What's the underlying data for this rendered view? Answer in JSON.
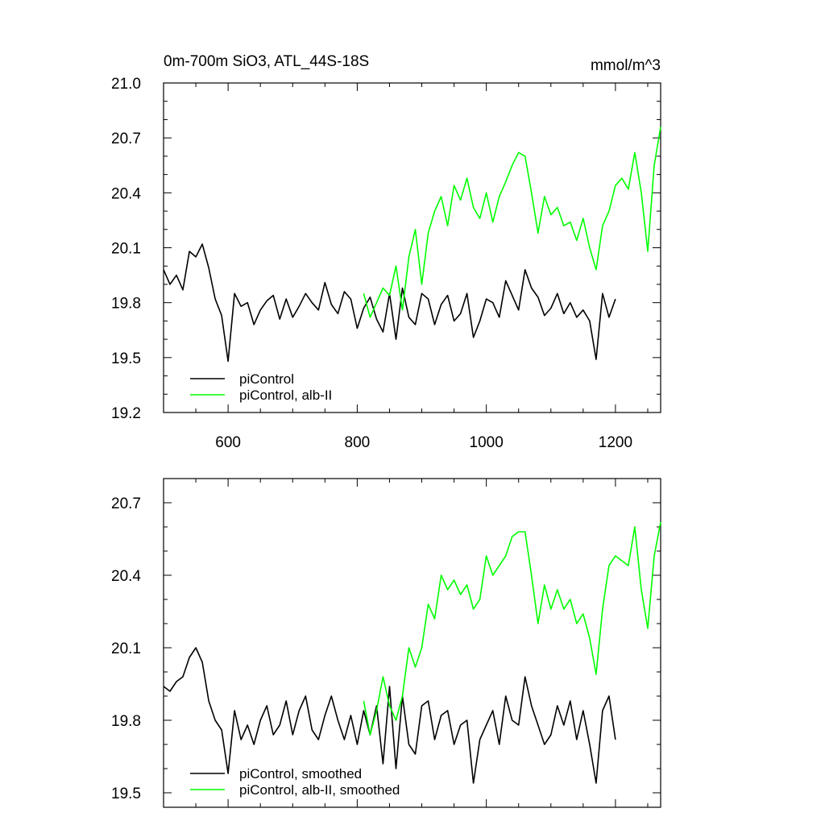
{
  "figure": {
    "title_left": "0m-700m SiO3, ATL_44S-18S",
    "title_right": "mmol/m^3"
  },
  "chart_data": [
    {
      "type": "line",
      "title": "0m-700m SiO3, ATL_44S-18S",
      "unit": "mmol/m^3",
      "xlim": [
        500,
        1270
      ],
      "ylim": [
        19.2,
        21.0
      ],
      "xticks": [
        600,
        800,
        1000,
        1200
      ],
      "xtick_labels": [
        "600",
        "800",
        "1000",
        "1200"
      ],
      "yticks": [
        19.2,
        19.5,
        19.8,
        20.1,
        20.4,
        20.7,
        21.0
      ],
      "ytick_labels": [
        "19.2",
        "19.5",
        "19.8",
        "20.1",
        "20.4",
        "20.7",
        "21.0"
      ],
      "legend": "bottom-left",
      "series": [
        {
          "name": "piControl",
          "color": "#000000",
          "x": [
            500,
            510,
            520,
            530,
            540,
            550,
            560,
            570,
            580,
            590,
            600,
            610,
            620,
            630,
            640,
            650,
            660,
            670,
            680,
            690,
            700,
            710,
            720,
            730,
            740,
            750,
            760,
            770,
            780,
            790,
            800,
            810,
            820,
            830,
            840,
            850,
            860,
            870,
            880,
            890,
            900,
            910,
            920,
            930,
            940,
            950,
            960,
            970,
            980,
            990,
            1000,
            1010,
            1020,
            1030,
            1040,
            1050,
            1060,
            1070,
            1080,
            1090,
            1100,
            1110,
            1120,
            1130,
            1140,
            1150,
            1160,
            1170,
            1180,
            1190,
            1200
          ],
          "values": [
            19.98,
            19.9,
            19.95,
            19.87,
            20.08,
            20.05,
            20.12,
            19.99,
            19.82,
            19.73,
            19.48,
            19.85,
            19.78,
            19.8,
            19.68,
            19.76,
            19.81,
            19.84,
            19.71,
            19.82,
            19.72,
            19.78,
            19.85,
            19.8,
            19.76,
            19.91,
            19.79,
            19.74,
            19.86,
            19.82,
            19.66,
            19.77,
            19.83,
            19.71,
            19.64,
            19.85,
            19.6,
            19.88,
            19.72,
            19.68,
            19.85,
            19.82,
            19.68,
            19.79,
            19.84,
            19.7,
            19.74,
            19.85,
            19.61,
            19.7,
            19.82,
            19.8,
            19.72,
            19.92,
            19.84,
            19.76,
            19.98,
            19.88,
            19.83,
            19.73,
            19.77,
            19.85,
            19.74,
            19.8,
            19.72,
            19.76,
            19.7,
            19.49,
            19.85,
            19.72,
            19.82
          ]
        },
        {
          "name": "piControl, alb-II",
          "color": "#00ff00",
          "x": [
            810,
            820,
            830,
            840,
            850,
            860,
            870,
            880,
            890,
            900,
            910,
            920,
            930,
            940,
            950,
            960,
            970,
            980,
            990,
            1000,
            1010,
            1020,
            1030,
            1040,
            1050,
            1060,
            1070,
            1080,
            1090,
            1100,
            1110,
            1120,
            1130,
            1140,
            1150,
            1160,
            1170,
            1180,
            1190,
            1200,
            1210,
            1220,
            1230,
            1240,
            1250,
            1260,
            1270
          ],
          "values": [
            19.85,
            19.72,
            19.8,
            19.88,
            19.84,
            20.0,
            19.76,
            20.05,
            20.2,
            19.9,
            20.18,
            20.3,
            20.38,
            20.22,
            20.44,
            20.36,
            20.48,
            20.32,
            20.26,
            20.4,
            20.24,
            20.38,
            20.46,
            20.55,
            20.62,
            20.6,
            20.4,
            20.18,
            20.38,
            20.28,
            20.32,
            20.22,
            20.24,
            20.14,
            20.26,
            20.1,
            19.98,
            20.22,
            20.3,
            20.44,
            20.48,
            20.42,
            20.62,
            20.4,
            20.08,
            20.55,
            20.76
          ]
        }
      ]
    },
    {
      "type": "line",
      "xlim": [
        500,
        1270
      ],
      "ylim": [
        19.44,
        20.8
      ],
      "xticks": [
        600,
        800,
        1000,
        1200
      ],
      "yticks": [
        19.5,
        19.8,
        20.1,
        20.4,
        20.7
      ],
      "ytick_labels": [
        "19.5",
        "19.8",
        "20.1",
        "20.4",
        "20.7"
      ],
      "legend": "bottom-left",
      "series": [
        {
          "name": "piControl, smoothed",
          "color": "#000000",
          "x": [
            500,
            510,
            520,
            530,
            540,
            550,
            560,
            570,
            580,
            590,
            600,
            610,
            620,
            630,
            640,
            650,
            660,
            670,
            680,
            690,
            700,
            710,
            720,
            730,
            740,
            750,
            760,
            770,
            780,
            790,
            800,
            810,
            820,
            830,
            840,
            850,
            860,
            870,
            880,
            890,
            900,
            910,
            920,
            930,
            940,
            950,
            960,
            970,
            980,
            990,
            1000,
            1010,
            1020,
            1030,
            1040,
            1050,
            1060,
            1070,
            1080,
            1090,
            1100,
            1110,
            1120,
            1130,
            1140,
            1150,
            1160,
            1170,
            1180,
            1190,
            1200
          ],
          "values": [
            19.94,
            19.92,
            19.96,
            19.98,
            20.06,
            20.1,
            20.04,
            19.88,
            19.8,
            19.76,
            19.58,
            19.84,
            19.72,
            19.78,
            19.7,
            19.8,
            19.86,
            19.74,
            19.78,
            19.88,
            19.74,
            19.84,
            19.9,
            19.76,
            19.72,
            19.82,
            19.9,
            19.8,
            19.72,
            19.82,
            19.7,
            19.84,
            19.74,
            19.86,
            19.62,
            19.94,
            19.6,
            19.9,
            19.7,
            19.66,
            19.86,
            19.88,
            19.72,
            19.82,
            19.84,
            19.7,
            19.78,
            19.8,
            19.54,
            19.72,
            19.78,
            19.84,
            19.7,
            19.9,
            19.8,
            19.78,
            19.98,
            19.86,
            19.78,
            19.7,
            19.74,
            19.86,
            19.78,
            19.88,
            19.72,
            19.84,
            19.7,
            19.54,
            19.84,
            19.9,
            19.72
          ]
        },
        {
          "name": "piControl, alb-II, smoothed",
          "color": "#00ff00",
          "x": [
            810,
            820,
            830,
            840,
            850,
            860,
            870,
            880,
            890,
            900,
            910,
            920,
            930,
            940,
            950,
            960,
            970,
            980,
            990,
            1000,
            1010,
            1020,
            1030,
            1040,
            1050,
            1060,
            1070,
            1080,
            1090,
            1100,
            1110,
            1120,
            1130,
            1140,
            1150,
            1160,
            1170,
            1180,
            1190,
            1200,
            1210,
            1220,
            1230,
            1240,
            1250,
            1260,
            1270
          ],
          "values": [
            19.88,
            19.74,
            19.84,
            19.98,
            19.86,
            19.8,
            19.9,
            20.1,
            20.02,
            20.1,
            20.28,
            20.22,
            20.4,
            20.34,
            20.38,
            20.32,
            20.36,
            20.26,
            20.3,
            20.48,
            20.4,
            20.44,
            20.48,
            20.56,
            20.58,
            20.58,
            20.4,
            20.2,
            20.36,
            20.26,
            20.34,
            20.26,
            20.3,
            20.2,
            20.24,
            20.14,
            19.99,
            20.26,
            20.44,
            20.48,
            20.46,
            20.44,
            20.6,
            20.34,
            20.18,
            20.48,
            20.62
          ]
        }
      ]
    }
  ]
}
